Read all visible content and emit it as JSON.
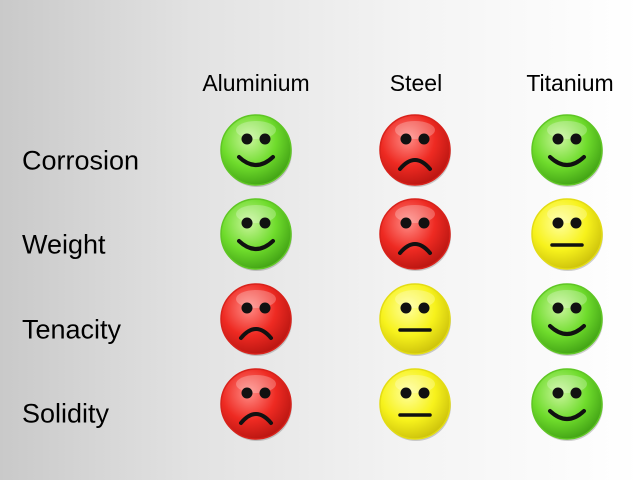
{
  "columns": [
    "Aluminium",
    "Steel",
    "Titanium"
  ],
  "rows": [
    {
      "label": "Corrosion",
      "ratings": [
        "happy",
        "sad",
        "happy"
      ]
    },
    {
      "label": "Weight",
      "ratings": [
        "happy",
        "sad",
        "neutral"
      ]
    },
    {
      "label": "Tenacity",
      "ratings": [
        "sad",
        "neutral",
        "happy"
      ]
    },
    {
      "label": "Solidity",
      "ratings": [
        "sad",
        "neutral",
        "happy"
      ]
    }
  ],
  "colors": {
    "happy": {
      "light": "#c8f59a",
      "mid": "#6fdc2c",
      "dark": "#3e9e13",
      "rim": "#5fc624"
    },
    "sad": {
      "light": "#ff8a84",
      "mid": "#ee2a22",
      "dark": "#b51410",
      "rim": "#d8221b"
    },
    "neutral": {
      "light": "#ffff9a",
      "mid": "#f7f21c",
      "dark": "#c9be0a",
      "rim": "#e3dc14"
    }
  },
  "icons": {
    "happy": "happy-face-icon",
    "sad": "sad-face-icon",
    "neutral": "neutral-face-icon"
  }
}
